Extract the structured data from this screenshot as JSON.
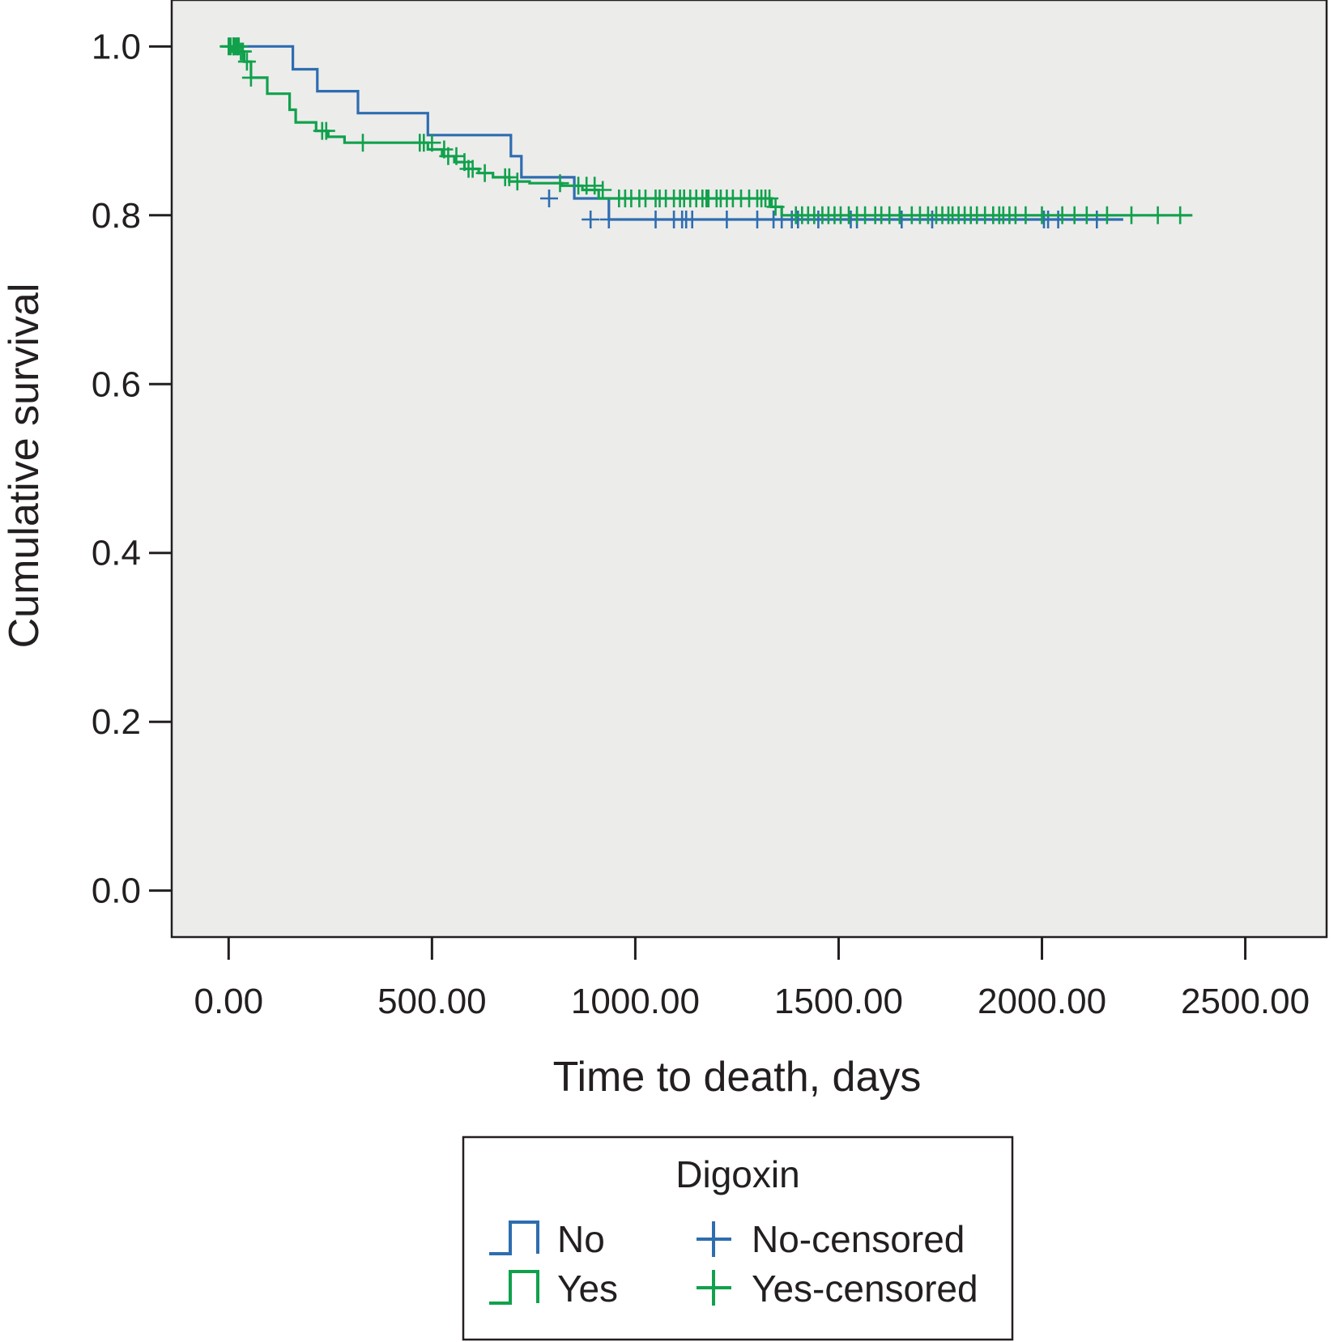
{
  "chart_data": {
    "type": "line",
    "subtype": "kaplan-meier",
    "title": "",
    "xlabel": "Time to death, days",
    "ylabel": "Cumulative survival",
    "xlim": [
      -140,
      2700
    ],
    "ylim": [
      -0.055,
      1.055
    ],
    "x_ticks": [
      0,
      500,
      1000,
      1500,
      2000,
      2500
    ],
    "x_tick_labels": [
      "0.00",
      "500.00",
      "1000.00",
      "1500.00",
      "2000.00",
      "2500.00"
    ],
    "y_ticks": [
      0,
      0.2,
      0.4,
      0.6,
      0.8,
      1.0
    ],
    "y_tick_labels": [
      "0.0",
      "0.2",
      "0.4",
      "0.6",
      "0.8",
      "1.0"
    ],
    "grid": false,
    "background_color": "#ececeb",
    "legend": {
      "title": "Digoxin",
      "position": "bottom-center",
      "entries": [
        "No",
        "Yes",
        "No-censored",
        "Yes-censored"
      ]
    },
    "series": [
      {
        "name": "No",
        "color": "#2e6db0",
        "step_x": [
          0,
          158,
          158,
          218,
          218,
          318,
          318,
          490,
          490,
          694,
          694,
          720,
          720,
          850,
          850,
          935,
          935,
          2200
        ],
        "step_y": [
          1.0,
          1.0,
          0.973,
          0.973,
          0.947,
          0.947,
          0.921,
          0.921,
          0.895,
          0.895,
          0.87,
          0.87,
          0.845,
          0.845,
          0.82,
          0.82,
          0.795,
          0.795
        ],
        "censored_x": [
          12,
          22,
          788,
          890,
          935,
          1050,
          1095,
          1115,
          1125,
          1140,
          1225,
          1300,
          1340,
          1360,
          1385,
          1400,
          1450,
          1530,
          1545,
          1655,
          1730,
          2005,
          2015,
          2040,
          2135
        ],
        "censored_y": [
          1.0,
          1.0,
          0.82,
          0.795,
          0.795,
          0.795,
          0.795,
          0.795,
          0.795,
          0.795,
          0.795,
          0.795,
          0.795,
          0.795,
          0.795,
          0.795,
          0.795,
          0.795,
          0.795,
          0.795,
          0.795,
          0.795,
          0.795,
          0.795,
          0.795
        ]
      },
      {
        "name": "Yes",
        "color": "#11a14c",
        "step_x": [
          -20,
          10,
          10,
          38,
          38,
          55,
          55,
          95,
          95,
          150,
          150,
          165,
          165,
          215,
          215,
          245,
          245,
          285,
          285,
          490,
          490,
          525,
          525,
          555,
          555,
          580,
          580,
          615,
          615,
          650,
          650,
          690,
          690,
          740,
          740,
          820,
          820,
          870,
          870,
          910,
          910,
          1335,
          1335,
          1360,
          1360,
          2370
        ],
        "step_y": [
          1.0,
          1.0,
          0.994,
          0.994,
          0.982,
          0.982,
          0.963,
          0.963,
          0.944,
          0.944,
          0.925,
          0.925,
          0.91,
          0.91,
          0.9,
          0.9,
          0.893,
          0.893,
          0.886,
          0.886,
          0.878,
          0.878,
          0.87,
          0.87,
          0.863,
          0.863,
          0.855,
          0.855,
          0.85,
          0.85,
          0.845,
          0.845,
          0.84,
          0.84,
          0.838,
          0.838,
          0.835,
          0.835,
          0.83,
          0.83,
          0.82,
          0.82,
          0.81,
          0.81,
          0.8,
          0.8
        ],
        "censored_x": [
          0,
          5,
          12,
          15,
          20,
          25,
          30,
          35,
          45,
          55,
          230,
          240,
          330,
          470,
          480,
          500,
          530,
          540,
          560,
          580,
          590,
          600,
          630,
          680,
          690,
          710,
          815,
          860,
          880,
          900,
          920,
          960,
          975,
          990,
          1010,
          1025,
          1050,
          1060,
          1075,
          1095,
          1110,
          1120,
          1135,
          1150,
          1165,
          1175,
          1180,
          1200,
          1210,
          1225,
          1240,
          1260,
          1280,
          1300,
          1310,
          1320,
          1330,
          1345,
          1395,
          1410,
          1425,
          1440,
          1460,
          1475,
          1490,
          1505,
          1525,
          1545,
          1565,
          1590,
          1605,
          1625,
          1650,
          1680,
          1700,
          1720,
          1740,
          1755,
          1770,
          1780,
          1795,
          1810,
          1825,
          1840,
          1860,
          1880,
          1895,
          1905,
          1920,
          1935,
          1960,
          2000,
          2050,
          2080,
          2110,
          2160,
          2220,
          2285,
          2340
        ],
        "censored_y": [
          1.0,
          1.0,
          1.0,
          1.0,
          1.0,
          1.0,
          0.994,
          0.994,
          0.982,
          0.963,
          0.9,
          0.9,
          0.886,
          0.886,
          0.886,
          0.886,
          0.878,
          0.87,
          0.87,
          0.863,
          0.855,
          0.855,
          0.85,
          0.845,
          0.845,
          0.84,
          0.838,
          0.835,
          0.835,
          0.835,
          0.83,
          0.82,
          0.82,
          0.82,
          0.82,
          0.82,
          0.82,
          0.82,
          0.82,
          0.82,
          0.82,
          0.82,
          0.82,
          0.82,
          0.82,
          0.82,
          0.82,
          0.82,
          0.82,
          0.82,
          0.82,
          0.82,
          0.82,
          0.82,
          0.82,
          0.82,
          0.82,
          0.81,
          0.8,
          0.8,
          0.8,
          0.8,
          0.8,
          0.8,
          0.8,
          0.8,
          0.8,
          0.8,
          0.8,
          0.8,
          0.8,
          0.8,
          0.8,
          0.8,
          0.8,
          0.8,
          0.8,
          0.8,
          0.8,
          0.8,
          0.8,
          0.8,
          0.8,
          0.8,
          0.8,
          0.8,
          0.8,
          0.8,
          0.8,
          0.8,
          0.8,
          0.8,
          0.8,
          0.8,
          0.8,
          0.8,
          0.8,
          0.8,
          0.8
        ]
      }
    ]
  }
}
